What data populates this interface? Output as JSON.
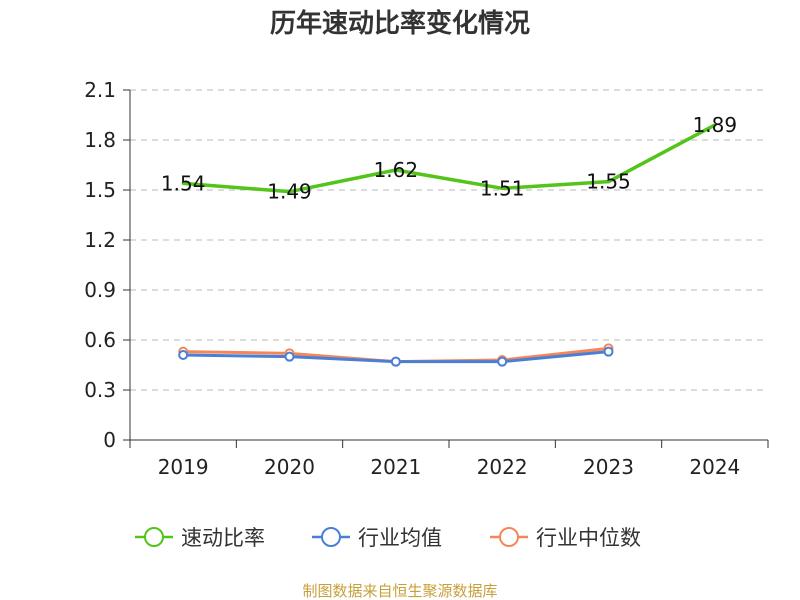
{
  "chart_data": {
    "type": "line",
    "title": "历年速动比率变化情况",
    "xlabel": "",
    "ylabel": "",
    "categories": [
      "2019",
      "2020",
      "2021",
      "2022",
      "2023",
      "2024"
    ],
    "ylim": [
      0,
      2.1
    ],
    "yticks": [
      "0",
      "0.3",
      "0.6",
      "0.9",
      "1.2",
      "1.5",
      "1.8",
      "2.1"
    ],
    "grid": true,
    "legend_position": "bottom",
    "series": [
      {
        "name": "速动比率",
        "color": "#52c41a",
        "values": [
          1.54,
          1.49,
          1.62,
          1.51,
          1.55,
          1.89
        ],
        "labels": [
          "1.54",
          "1.49",
          "1.62",
          "1.51",
          "1.55",
          "1.89"
        ]
      },
      {
        "name": "行业均值",
        "color": "#4a7fd6",
        "values": [
          0.51,
          0.5,
          0.47,
          0.47,
          0.53,
          null
        ]
      },
      {
        "name": "行业中位数",
        "color": "#f4875a",
        "values": [
          0.53,
          0.52,
          0.47,
          0.48,
          0.55,
          null
        ]
      }
    ]
  },
  "source": "制图数据来自恒生聚源数据库"
}
